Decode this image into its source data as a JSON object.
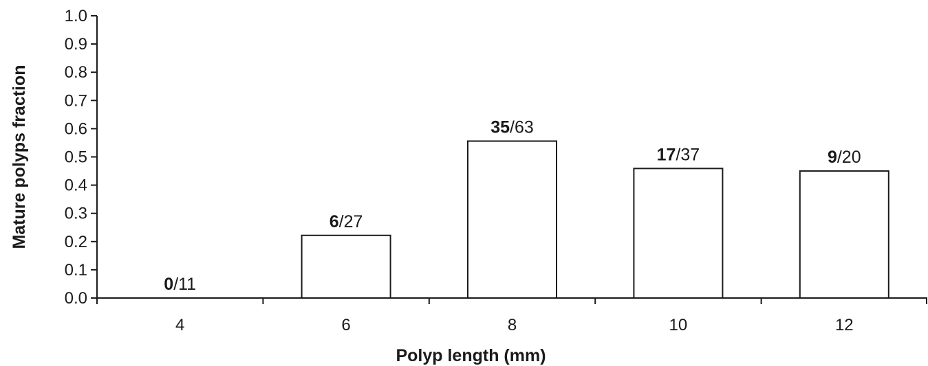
{
  "chart_data": {
    "type": "bar",
    "xlabel": "Polyp length (mm)",
    "ylabel": "Mature polyps fraction",
    "categories": [
      "4",
      "6",
      "8",
      "10",
      "12"
    ],
    "values": [
      0.0,
      0.222,
      0.556,
      0.459,
      0.45
    ],
    "bar_labels": [
      {
        "numerator": "0",
        "denominator": "/11"
      },
      {
        "numerator": "6",
        "denominator": "/27"
      },
      {
        "numerator": "35",
        "denominator": "/63"
      },
      {
        "numerator": "17",
        "denominator": "/37"
      },
      {
        "numerator": "9",
        "denominator": "/20"
      }
    ],
    "ylim": [
      0,
      1.0
    ],
    "yticks": [
      "0.0",
      "0.1",
      "0.2",
      "0.3",
      "0.4",
      "0.5",
      "0.6",
      "0.7",
      "0.8",
      "0.9",
      "1.0"
    ],
    "grid": false,
    "bar_fill": "#ffffff",
    "bar_stroke": "#1a1a1a"
  }
}
